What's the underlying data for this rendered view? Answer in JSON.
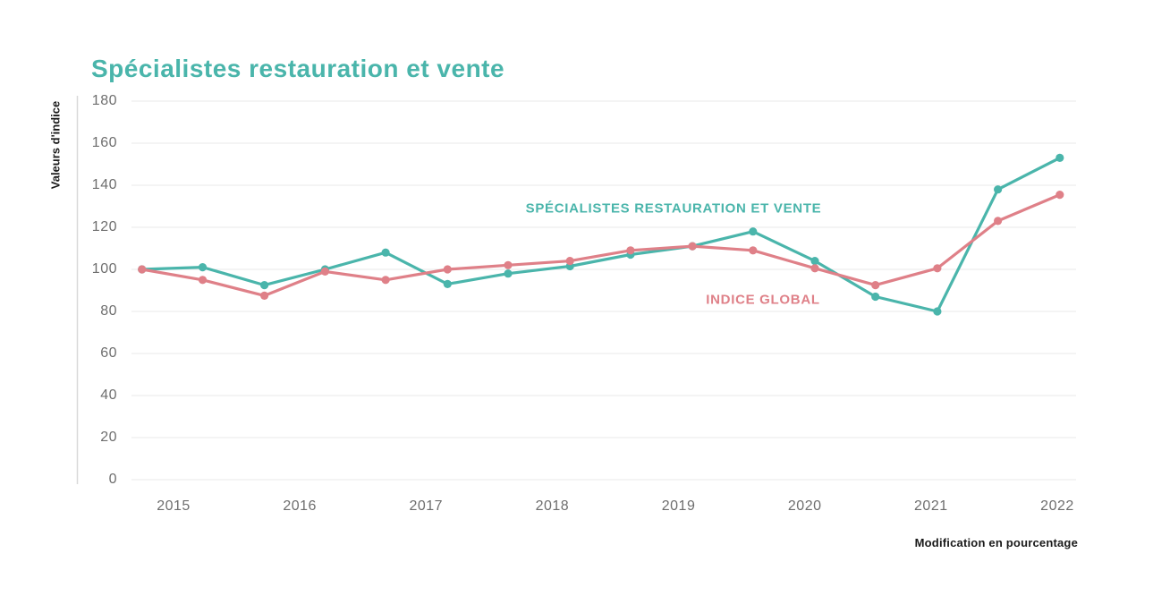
{
  "title": "Spécialistes restauration et vente",
  "colors": {
    "teal": "#4ab5ab",
    "pink": "#df8088",
    "grid": "#e9e9e9",
    "axis_line": "#d9d9d9",
    "tick_text": "#6e6e6e",
    "dark_text": "#1a1a1a"
  },
  "y_axis": {
    "title": "Valeurs d'indice",
    "ticks": [
      180,
      160,
      140,
      120,
      100,
      80,
      60,
      40,
      20,
      0
    ]
  },
  "x_axis": {
    "title": "Modification en pourcentage",
    "ticks": [
      "2015",
      "2016",
      "2017",
      "2018",
      "2019",
      "2020",
      "2021",
      "2022"
    ]
  },
  "inline_labels": {
    "teal": "SPÉCIALISTES RESTAURATION ET VENTE",
    "pink": "INDICE GLOBAL"
  },
  "chart_data": {
    "type": "line",
    "title": "Spécialistes restauration et vente",
    "xlabel": "Modification en pourcentage",
    "ylabel": "Valeurs d'indice",
    "ylim": [
      0,
      180
    ],
    "yticks": [
      0,
      20,
      40,
      60,
      80,
      100,
      120,
      140,
      160,
      180
    ],
    "xticks": [
      2015,
      2016,
      2017,
      2018,
      2019,
      2020,
      2021,
      2022
    ],
    "grid": "horizontal",
    "legend_position": "inline-labels",
    "x": [
      2014.75,
      2015.23,
      2015.72,
      2016.2,
      2016.68,
      2017.17,
      2017.65,
      2018.14,
      2018.62,
      2019.11,
      2019.59,
      2020.08,
      2020.56,
      2021.05,
      2021.53,
      2022.02
    ],
    "series": [
      {
        "name": "Spécialistes restauration et vente",
        "color": "#4ab5ab",
        "values": [
          100,
          101,
          92.5,
          100,
          108,
          93,
          98,
          101.5,
          107,
          111,
          118,
          104,
          87,
          80,
          138,
          153
        ]
      },
      {
        "name": "Indice global",
        "color": "#df8088",
        "values": [
          100,
          95,
          87.5,
          99,
          95,
          100,
          102,
          104,
          109,
          111,
          109,
          100.5,
          92.5,
          100.5,
          123,
          135.5
        ]
      }
    ]
  }
}
